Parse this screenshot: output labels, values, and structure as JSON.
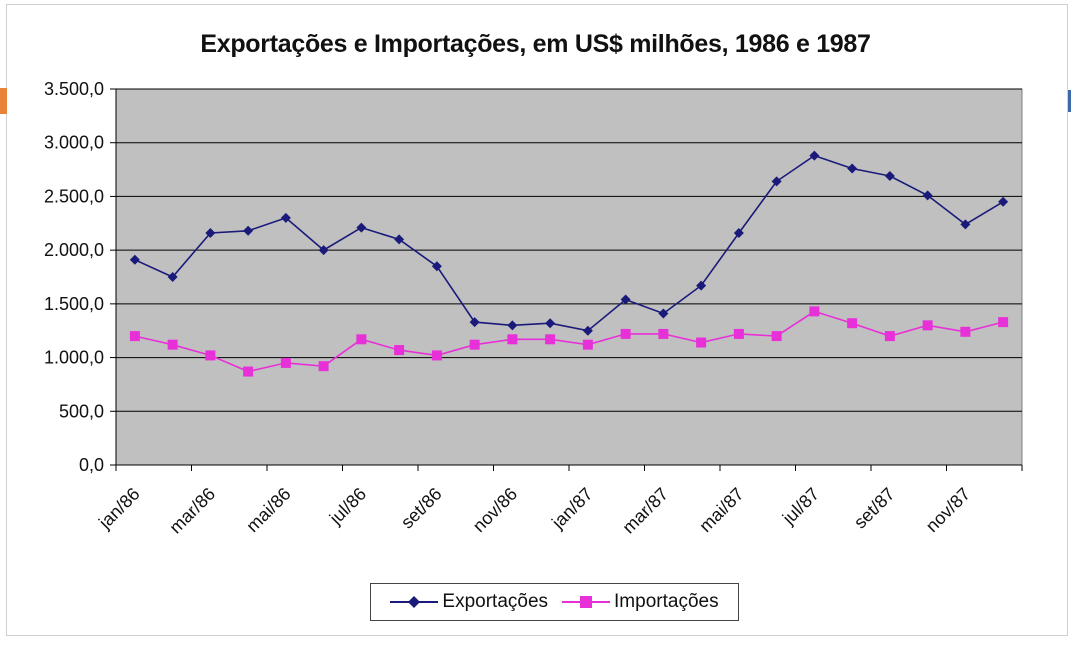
{
  "chart_data": {
    "type": "line",
    "title": "Exportações e Importações, em US$ milhões, 1986 e 1987",
    "xlabel": "",
    "ylabel": "",
    "ylim": [
      0,
      3500
    ],
    "y_ticks": [
      "0,0",
      "500,0",
      "1.000,0",
      "1.500,0",
      "2.000,0",
      "2.500,0",
      "3.000,0",
      "3.500,0"
    ],
    "x_tick_labels": [
      "jan/86",
      "mar/86",
      "mai/86",
      "jul/86",
      "set/86",
      "nov/86",
      "jan/87",
      "mar/87",
      "mai/87",
      "jul/87",
      "set/87",
      "nov/87"
    ],
    "categories": [
      "jan/86",
      "fev/86",
      "mar/86",
      "abr/86",
      "mai/86",
      "jun/86",
      "jul/86",
      "ago/86",
      "set/86",
      "out/86",
      "nov/86",
      "dez/86",
      "jan/87",
      "fev/87",
      "mar/87",
      "abr/87",
      "mai/87",
      "jun/87",
      "jul/87",
      "ago/87",
      "set/87",
      "out/87",
      "nov/87",
      "dez/87"
    ],
    "grid": true,
    "legend_position": "bottom",
    "series": [
      {
        "name": "Exportações",
        "color": "#1a1a7a",
        "marker": "diamond",
        "values": [
          1910,
          1750,
          2160,
          2180,
          2300,
          2000,
          2210,
          2100,
          1850,
          1330,
          1300,
          1320,
          1250,
          1540,
          1410,
          1670,
          2160,
          2640,
          2880,
          2760,
          2690,
          2510,
          2240,
          2450
        ]
      },
      {
        "name": "Importações",
        "color": "#e830d8",
        "marker": "square",
        "values": [
          1200,
          1120,
          1020,
          870,
          950,
          920,
          1170,
          1070,
          1020,
          1120,
          1170,
          1170,
          1120,
          1220,
          1220,
          1140,
          1220,
          1200,
          1430,
          1320,
          1200,
          1300,
          1240,
          1330
        ]
      }
    ]
  }
}
